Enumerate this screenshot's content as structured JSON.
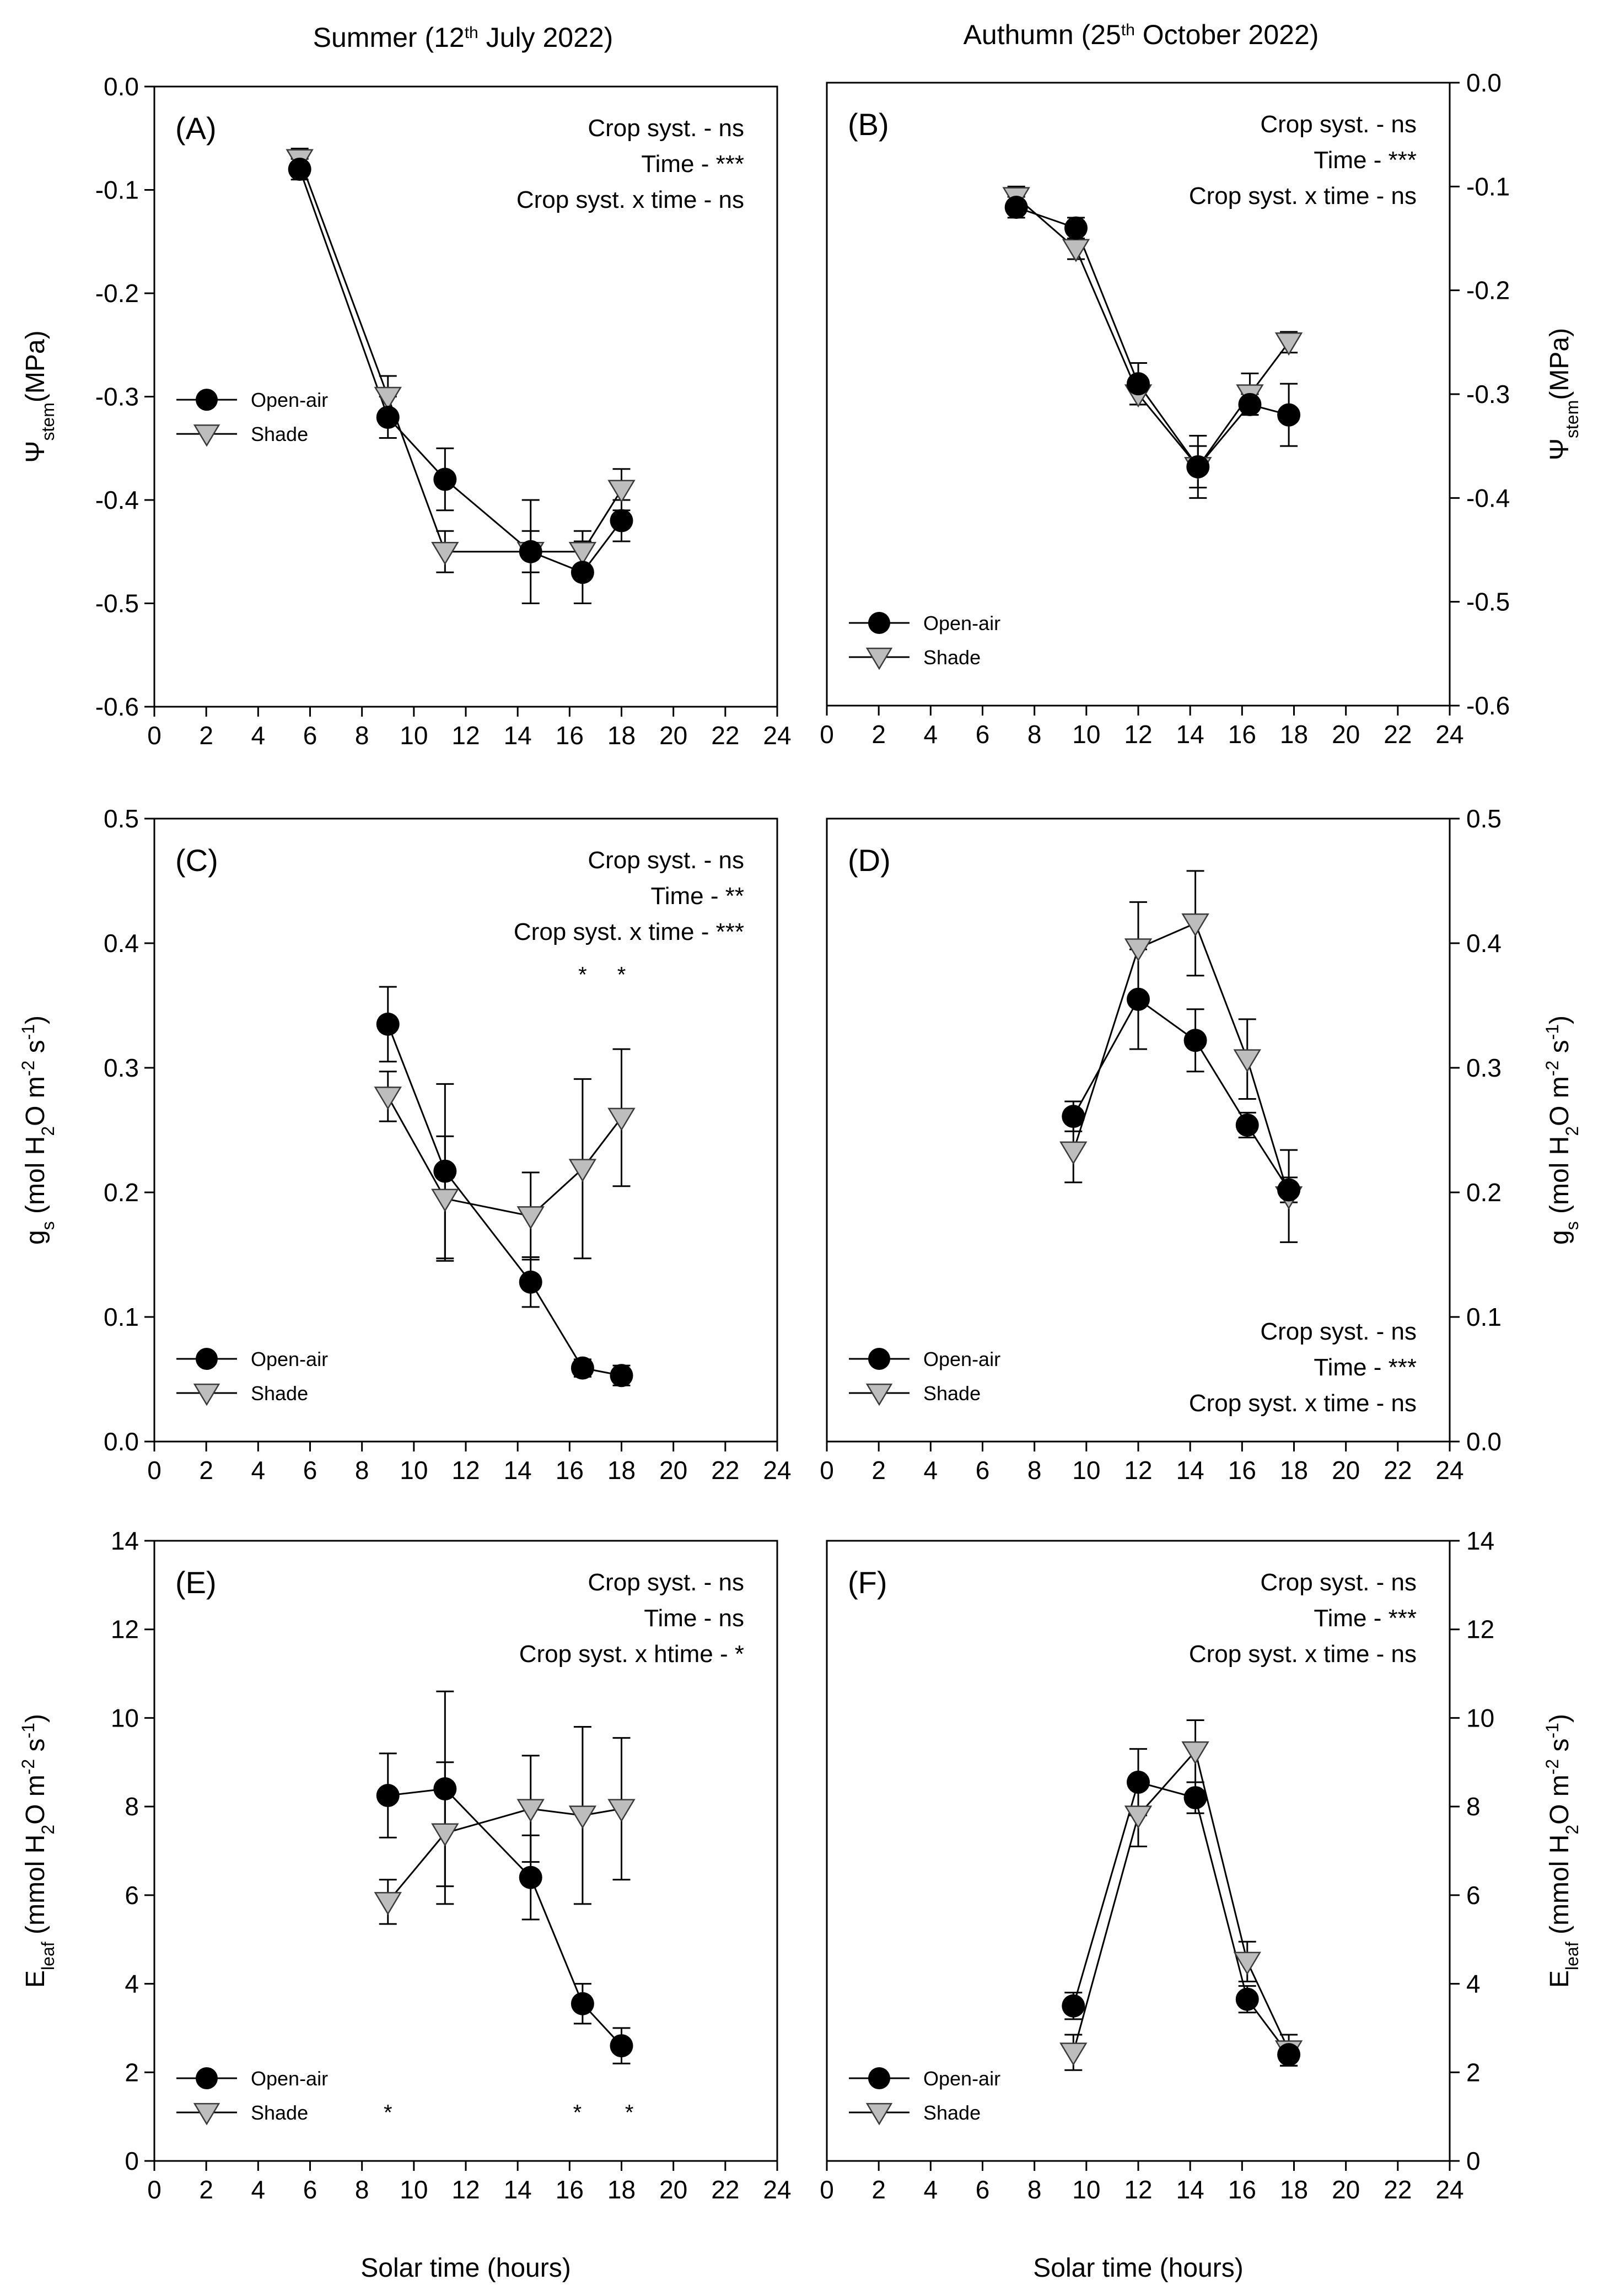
{
  "column_titles": [
    "Summer (12th July 2022)",
    "Authumn (25th October 2022)"
  ],
  "x_axis_label": "Solar time (hours)",
  "legend": {
    "open_air": "Open-air",
    "shade": "Shade"
  },
  "colors": {
    "open_air": "#000000",
    "shade": "#bdbdbd",
    "axis": "#000000"
  },
  "chart_data": [
    {
      "id": "A",
      "type": "line",
      "label": "(A)",
      "title": "Summer (12th July 2022)",
      "xlabel": "",
      "ylabel": "Ψstem(MPa)",
      "xlim": [
        0,
        24
      ],
      "ylim": [
        -0.6,
        0.0
      ],
      "xticks": [
        0,
        2,
        4,
        6,
        8,
        10,
        12,
        14,
        16,
        18,
        20,
        22,
        24
      ],
      "yticks": [
        0.0,
        -0.1,
        -0.2,
        -0.3,
        -0.4,
        -0.5,
        -0.6
      ],
      "yaxis_side": "left",
      "stats": [
        "Crop syst. - ns",
        "Time - ***",
        "Crop syst. x time - ns"
      ],
      "stats_position": "top-right",
      "legend_position": "middle-left",
      "significance": [],
      "series": [
        {
          "name": "Open-air",
          "x": [
            5.6,
            9.0,
            11.2,
            14.5,
            16.5,
            18.0
          ],
          "y": [
            -0.08,
            -0.32,
            -0.38,
            -0.45,
            -0.47,
            -0.42
          ],
          "err": [
            0.01,
            0.02,
            0.03,
            0.05,
            0.03,
            0.02
          ]
        },
        {
          "name": "Shade",
          "x": [
            5.6,
            9.0,
            11.2,
            14.5,
            16.5,
            18.0
          ],
          "y": [
            -0.07,
            -0.3,
            -0.45,
            -0.45,
            -0.45,
            -0.39
          ],
          "err": [
            0.01,
            0.02,
            0.02,
            0.02,
            0.02,
            0.02
          ]
        }
      ]
    },
    {
      "id": "B",
      "type": "line",
      "label": "(B)",
      "title": "Authumn (25th October 2022)",
      "xlabel": "",
      "ylabel": "Ψstem(MPa)",
      "xlim": [
        0,
        24
      ],
      "ylim": [
        -0.6,
        0.0
      ],
      "xticks": [
        0,
        2,
        4,
        6,
        8,
        10,
        12,
        14,
        16,
        18,
        20,
        22,
        24
      ],
      "yticks": [
        0.0,
        -0.1,
        -0.2,
        -0.3,
        -0.4,
        -0.5,
        -0.6
      ],
      "yaxis_side": "right",
      "stats": [
        "Crop syst. - ns",
        "Time - ***",
        "Crop syst. x time - ns"
      ],
      "stats_position": "top-right",
      "legend_position": "lower-left",
      "significance": [],
      "series": [
        {
          "name": "Open-air",
          "x": [
            7.3,
            9.6,
            12.0,
            14.3,
            16.3,
            17.8
          ],
          "y": [
            -0.12,
            -0.14,
            -0.29,
            -0.37,
            -0.31,
            -0.32
          ],
          "err": [
            0.01,
            0.01,
            0.02,
            0.03,
            0.01,
            0.03
          ]
        },
        {
          "name": "Shade",
          "x": [
            7.3,
            9.6,
            12.0,
            14.3,
            16.3,
            17.8
          ],
          "y": [
            -0.11,
            -0.16,
            -0.3,
            -0.37,
            -0.3,
            -0.25
          ],
          "err": [
            0.01,
            0.01,
            0.01,
            0.02,
            0.02,
            0.01
          ]
        }
      ]
    },
    {
      "id": "C",
      "type": "line",
      "label": "(C)",
      "xlabel": "",
      "ylabel": "gs (mol H2O m-2 s-1)",
      "xlim": [
        0,
        24
      ],
      "ylim": [
        0.0,
        0.5
      ],
      "xticks": [
        0,
        2,
        4,
        6,
        8,
        10,
        12,
        14,
        16,
        18,
        20,
        22,
        24
      ],
      "yticks": [
        0.0,
        0.1,
        0.2,
        0.3,
        0.4,
        0.5
      ],
      "yaxis_side": "left",
      "stats": [
        "Crop syst. - ns",
        "Time - **",
        "Crop syst. x  time - ***"
      ],
      "stats_position": "top-right",
      "legend_position": "lower-left",
      "significance": [
        {
          "x": 16.5,
          "y": 0.375,
          "text": "*"
        },
        {
          "x": 18.0,
          "y": 0.375,
          "text": "*"
        }
      ],
      "series": [
        {
          "name": "Open-air",
          "x": [
            9.0,
            11.2,
            14.5,
            16.5,
            18.0
          ],
          "y": [
            0.335,
            0.217,
            0.128,
            0.059,
            0.053
          ],
          "err": [
            0.03,
            0.07,
            0.02,
            0.007,
            0.008
          ]
        },
        {
          "name": "Shade",
          "x": [
            9.0,
            11.2,
            14.5,
            16.5,
            18.0
          ],
          "y": [
            0.277,
            0.195,
            0.181,
            0.219,
            0.26
          ],
          "err": [
            0.02,
            0.05,
            0.035,
            0.072,
            0.055
          ]
        }
      ]
    },
    {
      "id": "D",
      "type": "line",
      "label": "(D)",
      "xlabel": "",
      "ylabel": "gs (mol H2O m-2 s-1)",
      "xlim": [
        0,
        24
      ],
      "ylim": [
        0.0,
        0.5
      ],
      "xticks": [
        0,
        2,
        4,
        6,
        8,
        10,
        12,
        14,
        16,
        18,
        20,
        22,
        24
      ],
      "yticks": [
        0.0,
        0.1,
        0.2,
        0.3,
        0.4,
        0.5
      ],
      "yaxis_side": "right",
      "stats": [
        "Crop syst. - ns",
        "Time - ***",
        "Crop syst. x time - ns"
      ],
      "stats_position": "bottom-right",
      "legend_position": "lower-left",
      "significance": [],
      "series": [
        {
          "name": "Open-air",
          "x": [
            9.5,
            12.0,
            14.2,
            16.2,
            17.8
          ],
          "y": [
            0.261,
            0.355,
            0.322,
            0.254,
            0.202
          ],
          "err": [
            0.012,
            0.04,
            0.025,
            0.01,
            0.01
          ]
        },
        {
          "name": "Shade",
          "x": [
            9.5,
            12.0,
            14.2,
            16.2,
            17.8
          ],
          "y": [
            0.233,
            0.396,
            0.416,
            0.307,
            0.197
          ],
          "err": [
            0.025,
            0.037,
            0.042,
            0.032,
            0.037
          ]
        }
      ]
    },
    {
      "id": "E",
      "type": "line",
      "label": "(E)",
      "xlabel": "Solar time (hours)",
      "ylabel": "Eleaf (mmol H2O m-2 s-1)",
      "xlim": [
        0,
        24
      ],
      "ylim": [
        0,
        14
      ],
      "xticks": [
        0,
        2,
        4,
        6,
        8,
        10,
        12,
        14,
        16,
        18,
        20,
        22,
        24
      ],
      "yticks": [
        0,
        2,
        4,
        6,
        8,
        10,
        12,
        14
      ],
      "yaxis_side": "left",
      "stats": [
        "Crop syst. - ns",
        "Time - ns",
        "Crop syst. x htime - *"
      ],
      "stats_position": "top-right",
      "legend_position": "lower-left",
      "significance": [
        {
          "x": 9.0,
          "y": 1.1,
          "text": "*"
        },
        {
          "x": 16.3,
          "y": 1.1,
          "text": "*"
        },
        {
          "x": 18.3,
          "y": 1.1,
          "text": "*"
        }
      ],
      "series": [
        {
          "name": "Open-air",
          "x": [
            9.0,
            11.2,
            14.5,
            16.5,
            18.0
          ],
          "y": [
            8.25,
            8.4,
            6.4,
            3.55,
            2.6
          ],
          "err": [
            0.95,
            2.2,
            0.95,
            0.45,
            0.4
          ]
        },
        {
          "name": "Shade",
          "x": [
            9.0,
            11.2,
            14.5,
            16.5,
            18.0
          ],
          "y": [
            5.85,
            7.4,
            7.95,
            7.8,
            7.95
          ],
          "err": [
            0.5,
            1.6,
            1.2,
            2.0,
            1.6
          ]
        }
      ]
    },
    {
      "id": "F",
      "type": "line",
      "label": "(F)",
      "xlabel": "Solar time (hours)",
      "ylabel": "Eleaf (mmol H2O m-2 s-1)",
      "xlim": [
        0,
        24
      ],
      "ylim": [
        0,
        14
      ],
      "xticks": [
        0,
        2,
        4,
        6,
        8,
        10,
        12,
        14,
        16,
        18,
        20,
        22,
        24
      ],
      "yticks": [
        0,
        2,
        4,
        6,
        8,
        10,
        12,
        14
      ],
      "yaxis_side": "right",
      "stats": [
        "Crop syst. - ns",
        "Time - ***",
        "Crop syst. x time - ns"
      ],
      "stats_position": "top-right",
      "legend_position": "lower-left",
      "significance": [],
      "series": [
        {
          "name": "Open-air",
          "x": [
            9.5,
            12.0,
            14.2,
            16.2,
            17.8
          ],
          "y": [
            3.5,
            8.55,
            8.2,
            3.65,
            2.4
          ],
          "err": [
            0.3,
            0.75,
            0.35,
            0.3,
            0.25
          ]
        },
        {
          "name": "Shade",
          "x": [
            9.5,
            12.0,
            14.2,
            16.2,
            17.8
          ],
          "y": [
            2.45,
            7.8,
            9.25,
            4.5,
            2.5
          ],
          "err": [
            0.4,
            0.7,
            0.7,
            0.45,
            0.35
          ]
        }
      ]
    }
  ]
}
